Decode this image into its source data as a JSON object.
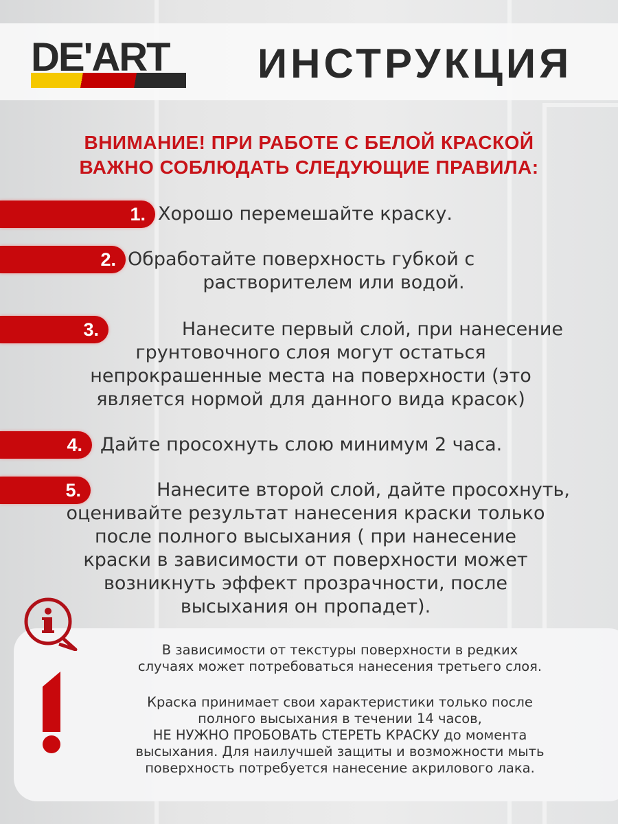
{
  "brand": {
    "logo": "DE'ART",
    "colors": {
      "yellow": "#f5c800",
      "red": "#c40000",
      "dark": "#2a2a2a"
    }
  },
  "header": {
    "title": "ИНСТРУКЦИЯ"
  },
  "warning": {
    "line1": "ВНИМАНИЕ! ПРИ РАБОТЕ С БЕЛОЙ КРАСКОЙ",
    "line2": "ВАЖНО СОБЛЮДАТЬ СЛЕДУЮЩИЕ ПРАВИЛА:"
  },
  "accent_color": "#c8080c",
  "steps": [
    {
      "num": "1.",
      "lines": [
        "Хорошо перемешайте краску."
      ]
    },
    {
      "num": "2.",
      "lines": [
        "Обработайте поверхность губкой с",
        "растворителем или водой."
      ]
    },
    {
      "num": "3.",
      "lines": [
        "Нанесите первый слой, при нанесение",
        "грунтовочного слоя могут остаться",
        "непрокрашенные места на поверхности (это",
        "является нормой для данного вида красок)"
      ]
    },
    {
      "num": "4.",
      "lines": [
        "Дайте просохнуть слою минимум 2 часа."
      ]
    },
    {
      "num": "5.",
      "lines": [
        "Нанесите второй слой, дайте просохнуть,",
        "оценивайте результат нанесения краски только",
        "после полного высыхания ( при нанесение",
        "краски в зависимости от поверхности может",
        "возникнуть эффект прозрачности, после",
        "высыхания он пропадет)."
      ]
    }
  ],
  "notes": {
    "icons": [
      "info-bubble-icon",
      "exclamation-icon"
    ],
    "p1": [
      "В зависимости от текстуры поверхности в редких",
      "случаях может потребоваться нанесения третьего слоя."
    ],
    "p2": [
      "Краска принимает свои характеристики только после",
      "полного высыхания в течении 14 часов,",
      "НЕ НУЖНО  ПРОБОВАТЬ СТЕРЕТЬ КРАСКУ до момента",
      "высыхания. Для наилучшей защиты и возможности мыть",
      "поверхность потребуется нанесение акрилового лака."
    ]
  }
}
